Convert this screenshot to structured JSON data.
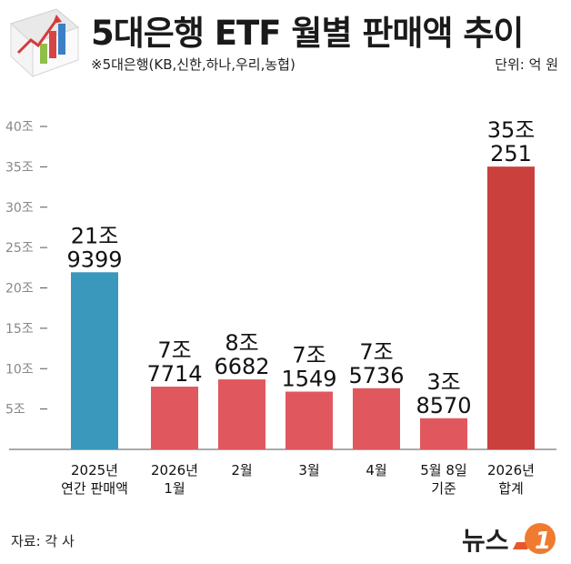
{
  "title": "5대은행 ETF 월별 판매액 추이",
  "note": "※5대은행(KB,신한,하나,우리,농협)",
  "unit_label": "단위: 억 원",
  "source": "자료: 각 사",
  "brand": {
    "text": "뉴스",
    "mark": "1"
  },
  "colors": {
    "blue": "#3a98bd",
    "red": "#e0585e",
    "dark_red": "#c9403c",
    "axis": "#555555",
    "tick_label": "#888888"
  },
  "chart_data": {
    "type": "bar",
    "title": "5대은행 ETF 월별 판매액 추이",
    "ylabel": "",
    "xlabel": "",
    "unit": "억 원",
    "ylim": [
      0,
      400000
    ],
    "yticks": [
      50000,
      100000,
      150000,
      200000,
      250000,
      300000,
      350000,
      400000
    ],
    "ytick_labels": [
      "5조",
      "10조",
      "15조",
      "20조",
      "25조",
      "30조",
      "35조",
      "40조"
    ],
    "grid": false,
    "bars": [
      {
        "category": [
          "2025년",
          "연간 판매액"
        ],
        "value": 219399,
        "label_top": "21조",
        "label_bottom": "9399",
        "color": "blue"
      },
      {
        "category": [
          "2026년",
          "1월"
        ],
        "value": 77714,
        "label_top": "7조",
        "label_bottom": "7714",
        "color": "red"
      },
      {
        "category": [
          "2월"
        ],
        "value": 86682,
        "label_top": "8조",
        "label_bottom": "6682",
        "color": "red"
      },
      {
        "category": [
          "3월"
        ],
        "value": 71549,
        "label_top": "7조",
        "label_bottom": "1549",
        "color": "red"
      },
      {
        "category": [
          "4월"
        ],
        "value": 75736,
        "label_top": "7조",
        "label_bottom": "5736",
        "color": "red"
      },
      {
        "category": [
          "5월 8일",
          "기준"
        ],
        "value": 38570,
        "label_top": "3조",
        "label_bottom": "8570",
        "color": "red"
      },
      {
        "category": [
          "2026년",
          "합계"
        ],
        "value": 350251,
        "label_top": "35조",
        "label_bottom": "251",
        "color": "dark_red"
      }
    ]
  }
}
